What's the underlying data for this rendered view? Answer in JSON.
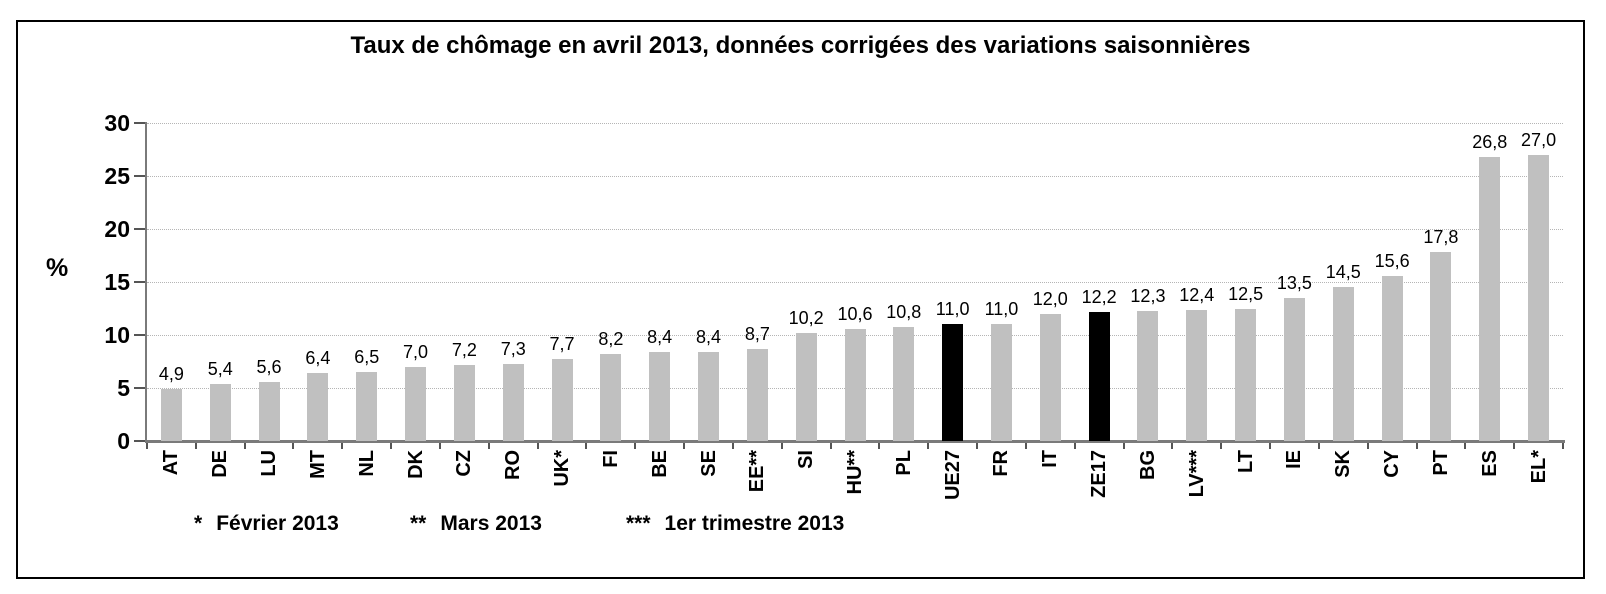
{
  "title": "Taux de chômage en avril 2013, données corrigées des variations saisonnières",
  "y_axis_unit": "%",
  "footnotes": [
    {
      "marker": "*",
      "text": "Février 2013"
    },
    {
      "marker": "**",
      "text": "Mars 2013"
    },
    {
      "marker": "***",
      "text": "1er trimestre 2013"
    }
  ],
  "colors": {
    "bar": "#c0c0c0",
    "bar_highlight": "#000000",
    "grid": "#b5b5b5",
    "axis": "#7a7a7a",
    "tick": "#555555",
    "text": "#000000",
    "frame_border": "#000000"
  },
  "chart_data": {
    "type": "bar",
    "title": "Taux de chômage en avril 2013, données corrigées des variations saisonnières",
    "xlabel": "",
    "ylabel": "%",
    "ylim": [
      0,
      30
    ],
    "yticks": [
      0,
      5,
      10,
      15,
      20,
      25,
      30
    ],
    "grid": "horizontal dotted, no grid at 0",
    "legend": "none",
    "categories": [
      "AT",
      "DE",
      "LU",
      "MT",
      "NL",
      "DK",
      "CZ",
      "RO",
      "UK*",
      "FI",
      "BE",
      "SE",
      "EE**",
      "SI",
      "HU**",
      "PL",
      "UE27",
      "FR",
      "IT",
      "ZE17",
      "BG",
      "LV***",
      "LT",
      "IE",
      "SK",
      "CY",
      "PT",
      "ES",
      "EL*"
    ],
    "values": [
      4.9,
      5.4,
      5.6,
      6.4,
      6.5,
      7.0,
      7.2,
      7.3,
      7.7,
      8.2,
      8.4,
      8.4,
      8.7,
      10.2,
      10.6,
      10.8,
      11.0,
      11.0,
      12.0,
      12.2,
      12.3,
      12.4,
      12.5,
      13.5,
      14.5,
      15.6,
      17.8,
      26.8,
      27.0
    ],
    "value_labels": [
      "4,9",
      "5,4",
      "5,6",
      "6,4",
      "6,5",
      "7,0",
      "7,2",
      "7,3",
      "7,7",
      "8,2",
      "8,4",
      "8,4",
      "8,7",
      "10,2",
      "10,6",
      "10,8",
      "11,0",
      "11,0",
      "12,0",
      "12,2",
      "12,3",
      "12,4",
      "12,5",
      "13,5",
      "14,5",
      "15,6",
      "17,8",
      "26,8",
      "27,0"
    ],
    "highlighted": [
      "UE27",
      "ZE17"
    ],
    "x_tick_label_rotation": -90
  }
}
